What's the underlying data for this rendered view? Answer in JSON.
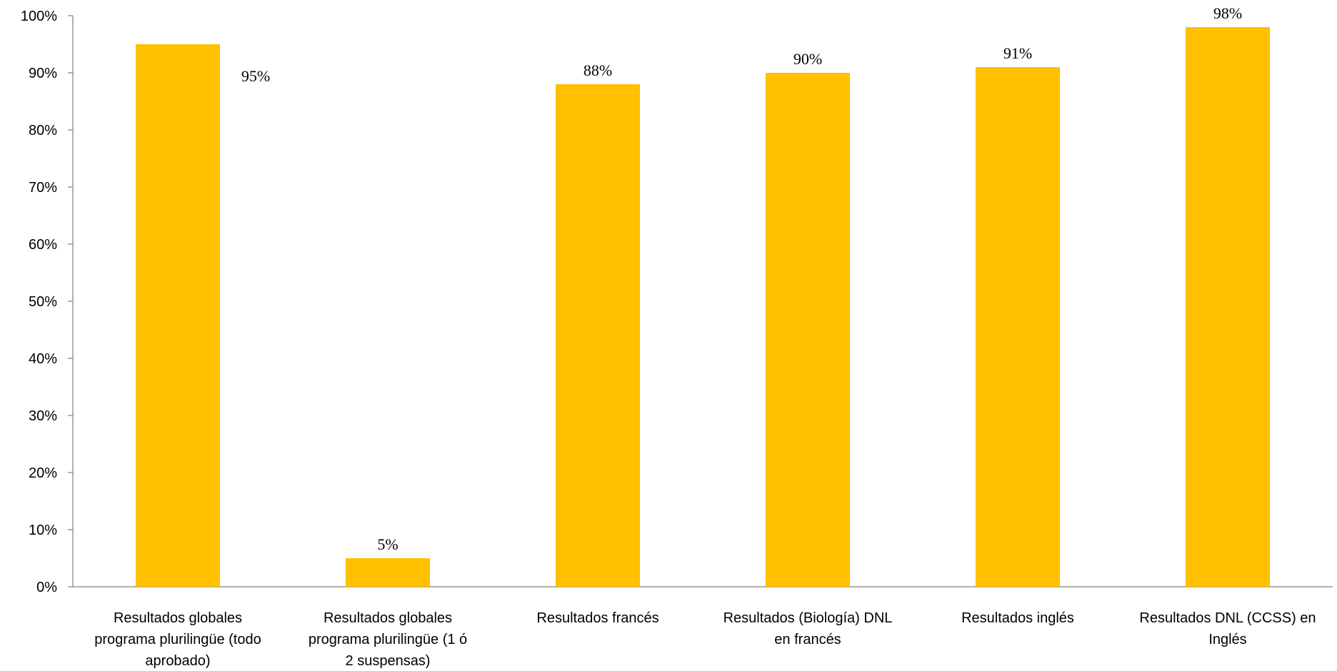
{
  "chart_data": {
    "type": "bar",
    "categories": [
      [
        "Resultados globales",
        "programa plurilingüe (todo",
        "aprobado)"
      ],
      [
        "Resultados globales",
        "programa plurilingüe (1 ó",
        "2 suspensas)"
      ],
      [
        "Resultados francés"
      ],
      [
        "Resultados (Biología) DNL",
        "en francés"
      ],
      [
        "Resultados inglés"
      ],
      [
        "Resultados DNL (CCSS) en",
        "Inglés"
      ]
    ],
    "values": [
      95,
      5,
      88,
      90,
      91,
      98
    ],
    "data_labels": [
      "95%",
      "5%",
      "88%",
      "90%",
      "91%",
      "98%"
    ],
    "y_ticks": [
      "0%",
      "10%",
      "20%",
      "30%",
      "40%",
      "50%",
      "60%",
      "70%",
      "80%",
      "90%",
      "100%"
    ],
    "ylim": [
      0,
      100
    ],
    "grid": false,
    "legend": "none",
    "colors": {
      "bar": "#FFC000",
      "axis": "#808080"
    }
  }
}
